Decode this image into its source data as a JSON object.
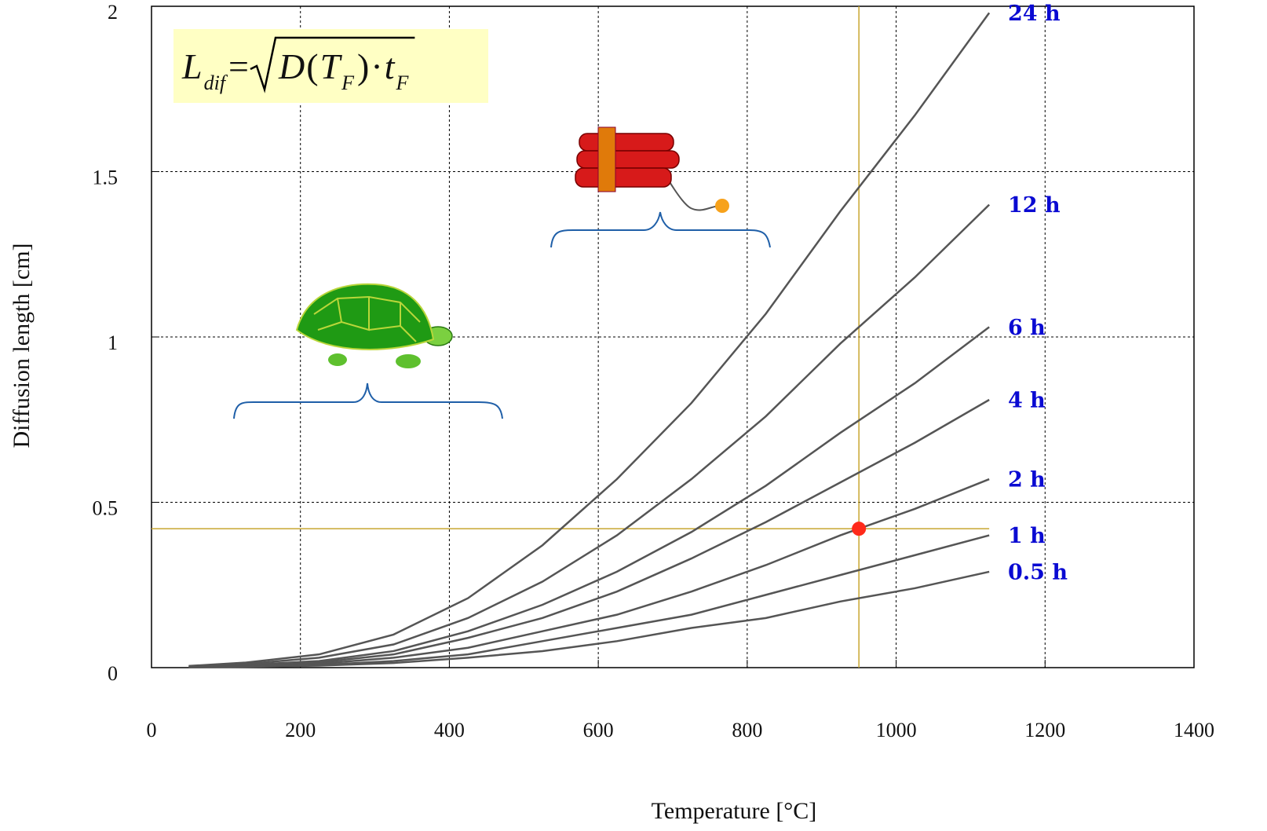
{
  "chart_data": {
    "type": "line",
    "xlabel": "Temperature [°C]",
    "ylabel": "Diffusion length [cm]",
    "xlim": [
      0,
      1400
    ],
    "ylim": [
      0,
      2
    ],
    "xticks": [
      0,
      200,
      400,
      600,
      800,
      1000,
      1200,
      1400
    ],
    "yticks": [
      0,
      0.5,
      1,
      1.5,
      2
    ],
    "grid": true,
    "x": [
      50,
      125,
      225,
      325,
      425,
      525,
      625,
      725,
      825,
      925,
      1025,
      1125
    ],
    "series": [
      {
        "name": "24 h",
        "color": "#555555",
        "values": [
          0.005,
          0.015,
          0.04,
          0.1,
          0.21,
          0.37,
          0.57,
          0.8,
          1.07,
          1.38,
          1.67,
          1.98
        ]
      },
      {
        "name": "12 h",
        "color": "#555555",
        "values": [
          0.004,
          0.011,
          0.03,
          0.07,
          0.15,
          0.26,
          0.4,
          0.57,
          0.76,
          0.98,
          1.18,
          1.4
        ]
      },
      {
        "name": "6 h",
        "color": "#555555",
        "values": [
          0.003,
          0.008,
          0.02,
          0.05,
          0.11,
          0.19,
          0.29,
          0.41,
          0.55,
          0.71,
          0.86,
          1.03
        ]
      },
      {
        "name": "4 h",
        "color": "#555555",
        "values": [
          0.002,
          0.006,
          0.016,
          0.04,
          0.09,
          0.15,
          0.23,
          0.33,
          0.44,
          0.56,
          0.68,
          0.81
        ]
      },
      {
        "name": "2 h",
        "color": "#555555",
        "values": [
          0.001,
          0.004,
          0.012,
          0.03,
          0.06,
          0.11,
          0.16,
          0.23,
          0.31,
          0.4,
          0.48,
          0.57
        ]
      },
      {
        "name": "1 h",
        "color": "#555555",
        "values": [
          0.001,
          0.003,
          0.008,
          0.02,
          0.04,
          0.08,
          0.12,
          0.16,
          0.22,
          0.28,
          0.34,
          0.4
        ]
      },
      {
        "name": "0.5 h",
        "color": "#555555",
        "values": [
          0.001,
          0.002,
          0.006,
          0.014,
          0.03,
          0.05,
          0.08,
          0.12,
          0.15,
          0.2,
          0.24,
          0.29
        ]
      }
    ],
    "marker": {
      "x": 950,
      "y": 0.42,
      "color": "#ff2a1a",
      "guide_color": "#c8a630"
    },
    "formula": {
      "parts": [
        {
          "text": "L",
          "italic": true
        },
        {
          "text": "dif",
          "italic": true,
          "sub": true
        },
        {
          "text": " = "
        },
        {
          "text": "D",
          "italic": true,
          "radical": true
        },
        {
          "text": "("
        },
        {
          "text": "T",
          "italic": true
        },
        {
          "text": "F",
          "italic": true,
          "sub": true
        },
        {
          "text": ")"
        },
        {
          "text": "·"
        },
        {
          "text": "t",
          "italic": true
        },
        {
          "text": "F",
          "italic": true,
          "sub": true
        }
      ]
    }
  }
}
